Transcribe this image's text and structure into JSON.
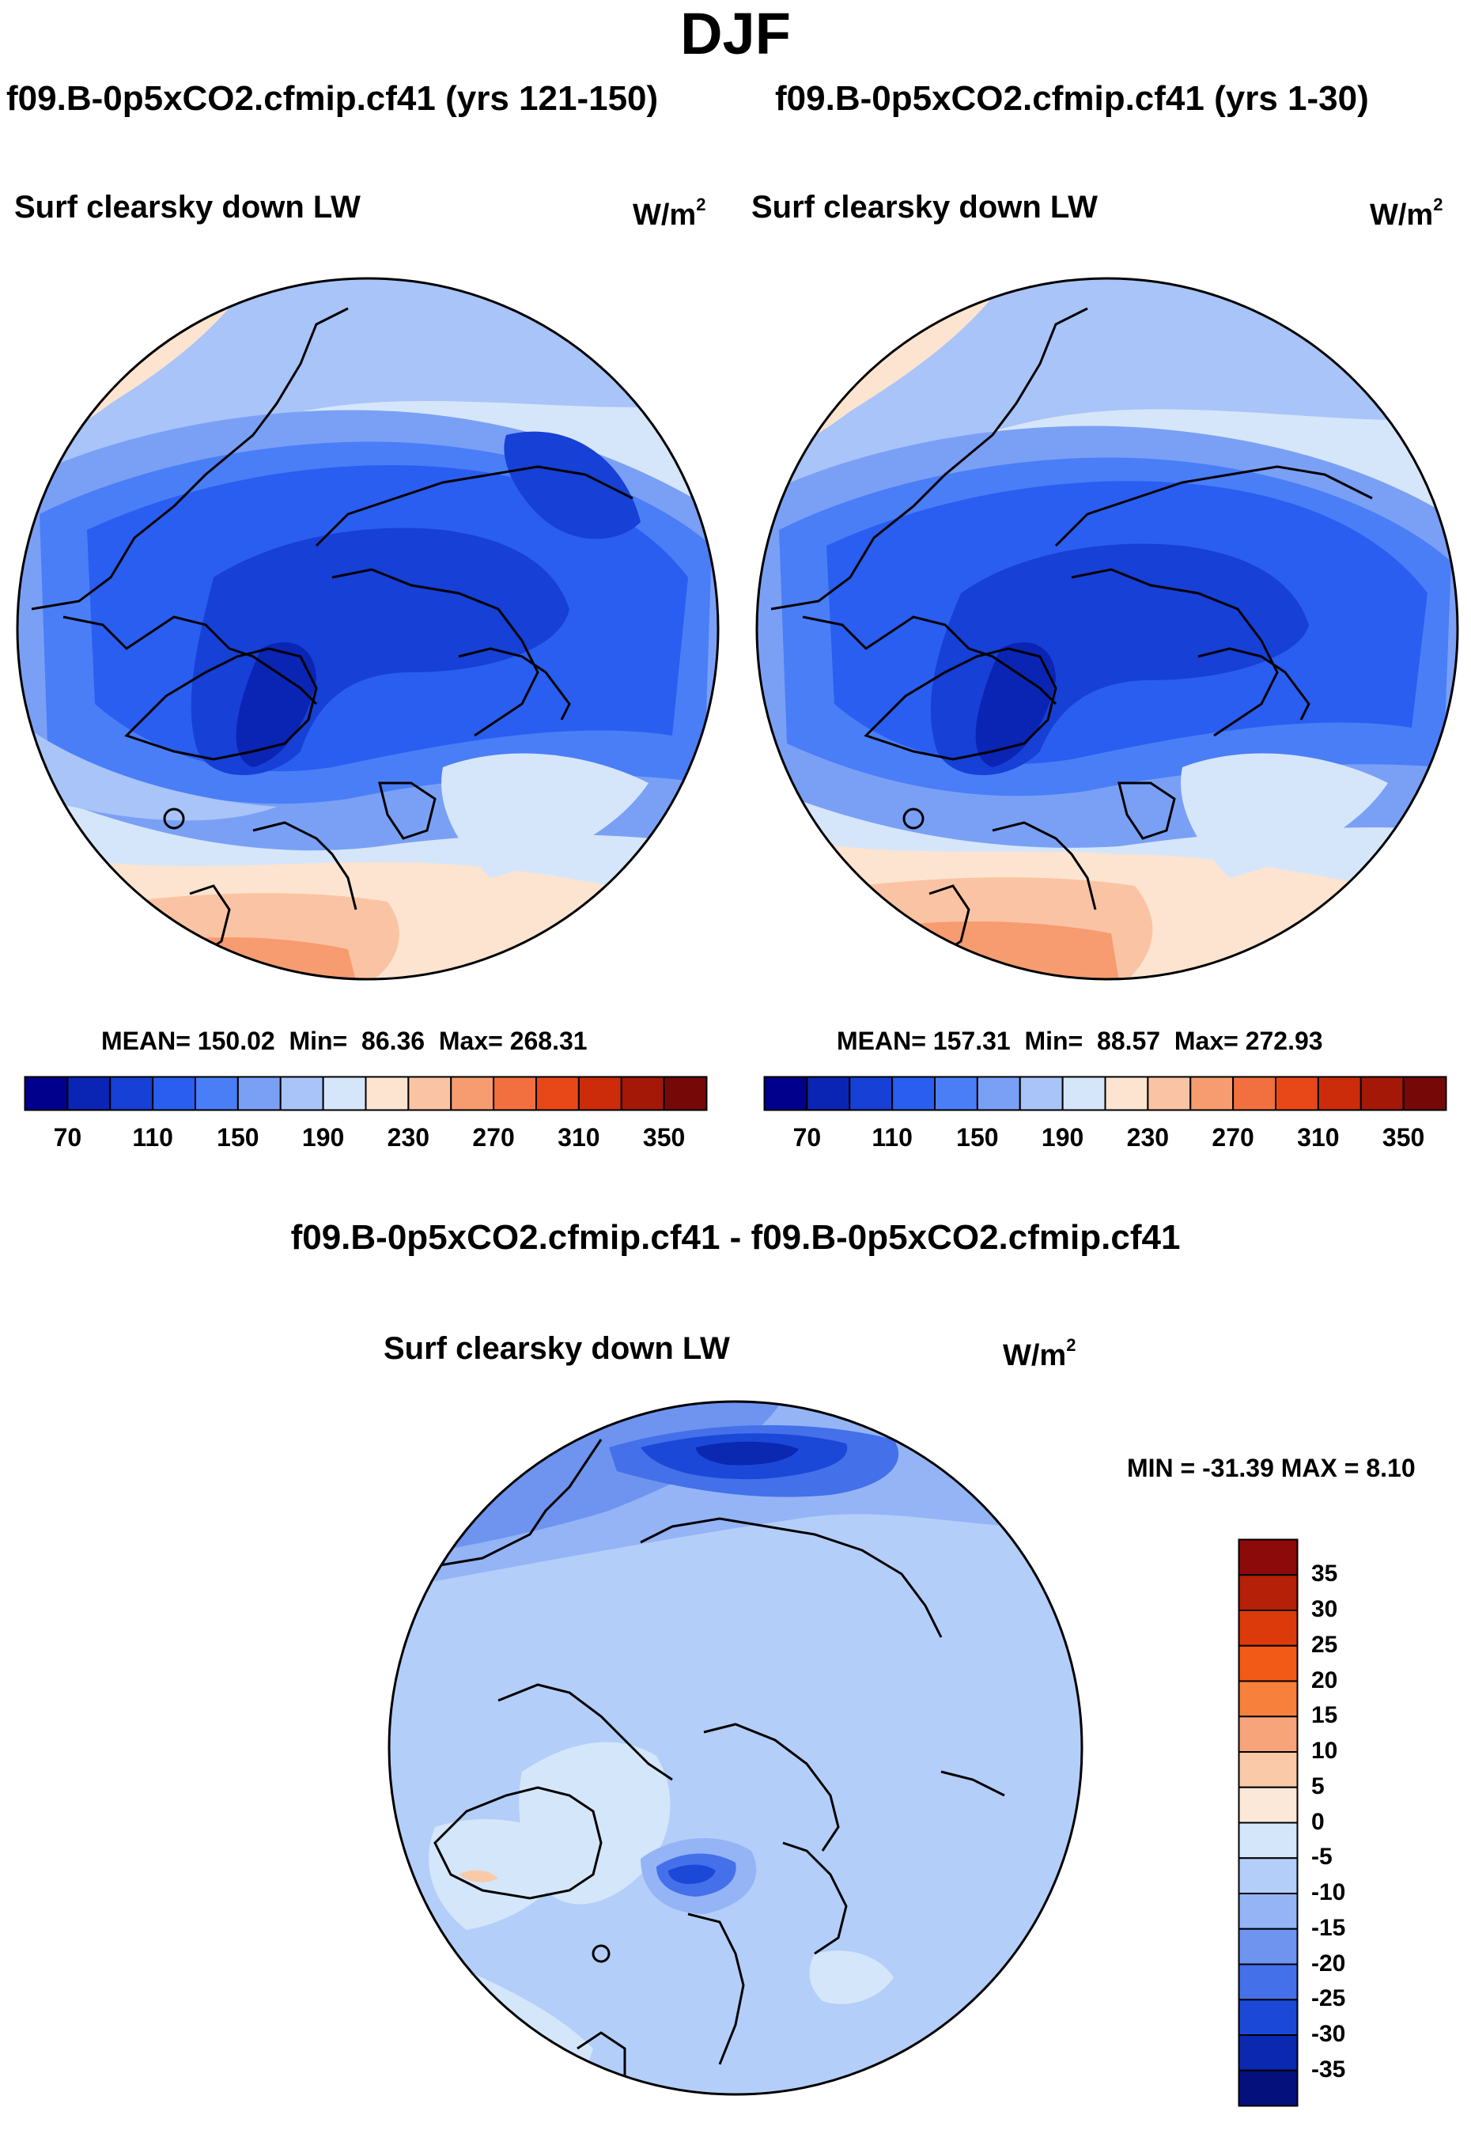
{
  "title": "DJF",
  "panels": [
    {
      "case": "f09.B-0p5xCO2.cfmip.cf41 (yrs 121-150)",
      "variable": "Surf clearsky down LW",
      "units_base": "W/m",
      "units_exp": "2",
      "stats": {
        "mean_label": "MEAN=",
        "mean": "150.02",
        "min_label": "Min=",
        "min": "86.36",
        "max_label": "Max=",
        "max": "268.31"
      }
    },
    {
      "case": "f09.B-0p5xCO2.cfmip.cf41 (yrs 1-30)",
      "variable": "Surf clearsky down LW",
      "units_base": "W/m",
      "units_exp": "2",
      "stats": {
        "mean_label": "MEAN=",
        "mean": "157.31",
        "min_label": "Min=",
        "min": "88.57",
        "max_label": "Max=",
        "max": "272.93"
      }
    }
  ],
  "colorbar": {
    "ticks": [
      "70",
      "110",
      "150",
      "190",
      "230",
      "270",
      "310",
      "350"
    ],
    "colors": [
      "#00008c",
      "#0a24b4",
      "#1640d6",
      "#2a5ef0",
      "#4a7ef6",
      "#7aa0f6",
      "#a8c4f8",
      "#d6e6fa",
      "#fce4d0",
      "#fac4a4",
      "#f69c70",
      "#f27040",
      "#e84818",
      "#cc2c0a",
      "#a41808",
      "#760808"
    ]
  },
  "difference": {
    "case": "f09.B-0p5xCO2.cfmip.cf41 - f09.B-0p5xCO2.cfmip.cf41",
    "variable": "Surf clearsky down LW",
    "units_base": "W/m",
    "units_exp": "2",
    "minmax": "MIN = -31.39  MAX =    8.10",
    "colorbar_labels": [
      "35",
      "30",
      "25",
      "20",
      "15",
      "10",
      "5",
      "0",
      "-5",
      "-10",
      "-15",
      "-20",
      "-25",
      "-30",
      "-35"
    ],
    "colorbar_colors": [
      "#8c0a0a",
      "#b42008",
      "#dc3a0a",
      "#f25a18",
      "#f6803c",
      "#f8a47a",
      "#facaa8",
      "#fce8d8",
      "#d4e6fa",
      "#b4cefa",
      "#94b4f6",
      "#6e94f0",
      "#4470ea",
      "#1c48d8",
      "#0a28b0",
      "#04107c"
    ]
  }
}
